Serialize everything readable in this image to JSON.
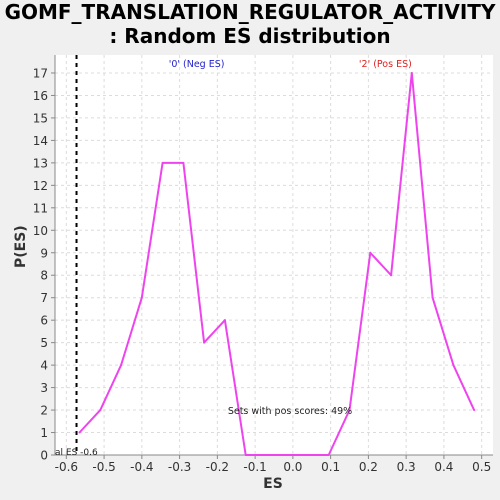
{
  "title_lines": [
    "GOMF_TRANSLATION_REGULATOR_ACTIVITY",
    ": Random ES distribution"
  ],
  "chart_data": {
    "type": "line",
    "xlabel": "ES",
    "ylabel": "P(ES)",
    "xlim": [
      -0.63,
      0.53
    ],
    "ylim": [
      0,
      17.8
    ],
    "x_ticks": [
      -0.6,
      -0.5,
      -0.4,
      -0.3,
      -0.2,
      -0.1,
      0.0,
      0.1,
      0.2,
      0.3,
      0.4,
      0.5
    ],
    "x_tick_labels": [
      "-0.6",
      "-0.5",
      "-0.4",
      "-0.3",
      "-0.2",
      "-0.1",
      "0.0",
      "0.1",
      "0.2",
      "0.3",
      "0.4",
      "0.5"
    ],
    "y_ticks": [
      0,
      1,
      2,
      3,
      4,
      5,
      6,
      7,
      8,
      9,
      10,
      11,
      12,
      13,
      14,
      15,
      16,
      17
    ],
    "y_tick_labels": [
      "0",
      "1",
      "2",
      "3",
      "4",
      "5",
      "6",
      "7",
      "8",
      "9",
      "10",
      "11",
      "12",
      "13",
      "14",
      "15",
      "16",
      "17"
    ],
    "grid": true,
    "series": [
      {
        "color": "#ee44ee",
        "x": [
          -0.565,
          -0.51,
          -0.455,
          -0.4,
          -0.345,
          -0.29,
          -0.235,
          -0.18,
          -0.125,
          -0.07,
          -0.015,
          0.04,
          0.095,
          0.15,
          0.205,
          0.26,
          0.315,
          0.37,
          0.425,
          0.48
        ],
        "y": [
          1,
          2,
          4,
          7,
          13,
          13,
          5,
          6,
          0,
          0,
          0,
          0,
          0,
          2,
          9,
          8,
          17,
          7,
          4,
          2
        ]
      }
    ],
    "actual_es": -0.573,
    "actual_es_label": "al ES -0.6",
    "neg_label": "'0' (Neg ES)",
    "pos_label": "'2' (Pos ES)",
    "neg_color": "#2222cc",
    "pos_color": "#dd2222",
    "annotation": "Sets with pos scores: 49%"
  }
}
